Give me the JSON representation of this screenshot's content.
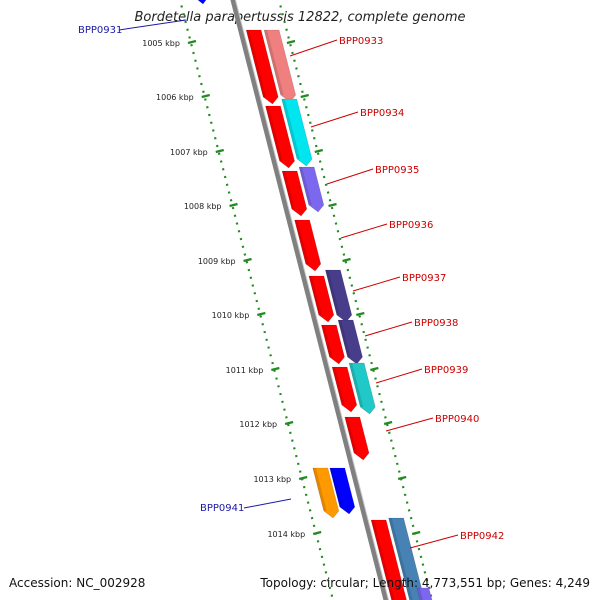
{
  "title": "Bordetella parapertussis 12822, complete genome",
  "footer": {
    "accession": "Accession: NC_002928",
    "summary": "Topology: circular; Length: 4,773,551 bp; Genes: 4,249"
  },
  "ticks": [
    "1005 kbp",
    "1006 kbp",
    "1007 kbp",
    "1008 kbp",
    "1009 kbp",
    "1010 kbp",
    "1011 kbp",
    "1012 kbp",
    "1013 kbp",
    "1014 kbp"
  ],
  "gene_labels": [
    {
      "id": "BPP0931",
      "color": "#1a1aa6"
    },
    {
      "id": "BPP0933",
      "color": "#cc0000"
    },
    {
      "id": "BPP0934",
      "color": "#cc0000"
    },
    {
      "id": "BPP0935",
      "color": "#cc0000"
    },
    {
      "id": "BPP0936",
      "color": "#cc0000"
    },
    {
      "id": "BPP0937",
      "color": "#cc0000"
    },
    {
      "id": "BPP0938",
      "color": "#cc0000"
    },
    {
      "id": "BPP0939",
      "color": "#cc0000"
    },
    {
      "id": "BPP0940",
      "color": "#cc0000"
    },
    {
      "id": "BPP0941",
      "color": "#1a1aa6"
    },
    {
      "id": "BPP0942",
      "color": "#cc0000"
    }
  ],
  "colors": {
    "red": "#ff0000",
    "salmon": "#f08080",
    "cyan": "#00e5ee",
    "teal": "#20c8c8",
    "slate": "#7b68ee",
    "indigo": "#483d8b",
    "blue": "#0000ff",
    "orange": "#ff9900",
    "steel": "#4682b4",
    "tick": "#228b22",
    "backbone": "#808080"
  }
}
